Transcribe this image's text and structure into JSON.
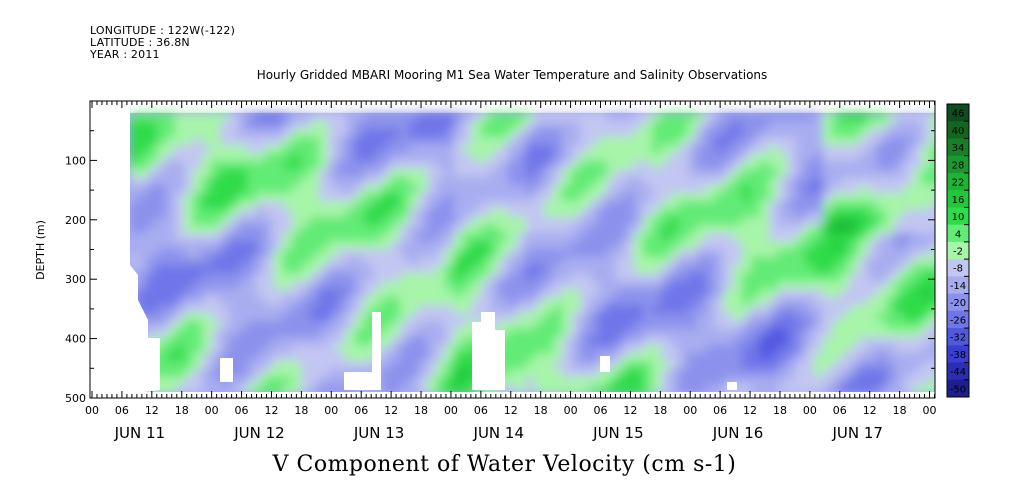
{
  "header": {
    "longitude": "LONGITUDE : 122W(-122)",
    "latitude": "LATITUDE : 36.8N",
    "year": "YEAR : 2011"
  },
  "chart_data": {
    "type": "heatmap",
    "title": "Hourly Gridded MBARI Mooring M1 Sea Water Temperature and Salinity Observations",
    "subtitle": "V Component of Water Velocity (cm s-1)",
    "ylabel": "DEPTH (m)",
    "xlabel": "",
    "ylim": [
      500,
      0
    ],
    "y_ticks": [
      100,
      200,
      300,
      400,
      500
    ],
    "x_hour_ticks": [
      "00",
      "06",
      "12",
      "18",
      "00",
      "06",
      "12",
      "18",
      "00",
      "06",
      "12",
      "18",
      "00",
      "06",
      "12",
      "18",
      "00",
      "06",
      "12",
      "18",
      "00",
      "06",
      "12",
      "18",
      "00",
      "06",
      "12",
      "18",
      "00"
    ],
    "x_day_labels": [
      "JUN 11",
      "JUN 12",
      "JUN 13",
      "JUN 14",
      "JUN 15",
      "JUN 16",
      "JUN 17"
    ],
    "depth_range": [
      20,
      490
    ],
    "colorbar": {
      "labels": [
        "46",
        "40",
        "34",
        "28",
        "22",
        "16",
        "10",
        "4",
        "-2",
        "-8",
        "-14",
        "-20",
        "-26",
        "-32",
        "-38",
        "-44",
        "-50"
      ],
      "levels": [
        52,
        46,
        40,
        34,
        28,
        22,
        16,
        10,
        4,
        -2,
        -8,
        -14,
        -20,
        -26,
        -32,
        -38,
        -44,
        -50
      ],
      "colors": [
        "#0e4d1e",
        "#12661f",
        "#158026",
        "#189a2c",
        "#1cb433",
        "#20c83a",
        "#2edb4a",
        "#62eb76",
        "#a6f5a8",
        "#c2c6f2",
        "#a8adf0",
        "#8c92ec",
        "#6f76e8",
        "#5158e0",
        "#3a3fd0",
        "#2a2eb5",
        "#1d1f90"
      ]
    },
    "data_gaps": "white regions near bottom (no data)"
  }
}
